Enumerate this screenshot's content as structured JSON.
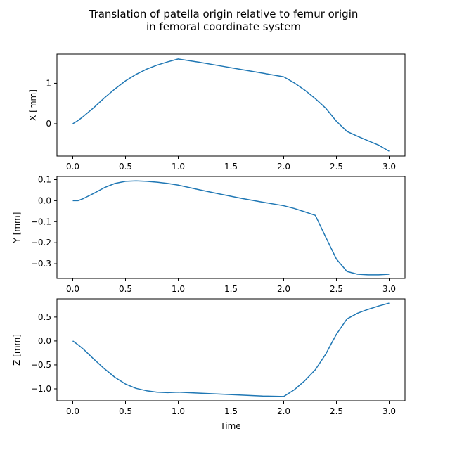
{
  "figure": {
    "title_line1": "Translation of patella origin relative to femur origin",
    "title_line2": "in femoral coordinate system",
    "xlabel": "Time"
  },
  "colors": {
    "line": "#1f77b4",
    "axes": "#000000",
    "background": "#ffffff"
  },
  "chart_data": [
    {
      "type": "line",
      "ylabel": "X [mm]",
      "xlim": [
        -0.15,
        3.15
      ],
      "ylim": [
        -0.8,
        1.72
      ],
      "xticks": [
        0.0,
        0.5,
        1.0,
        1.5,
        2.0,
        2.5,
        3.0
      ],
      "xtick_labels": [
        "0.0",
        "0.5",
        "1.0",
        "1.5",
        "2.0",
        "2.5",
        "3.0"
      ],
      "yticks": [
        0,
        1
      ],
      "ytick_labels": [
        "0",
        "1"
      ],
      "grid": false,
      "series": [
        {
          "x": [
            0.0,
            0.05,
            0.1,
            0.2,
            0.3,
            0.4,
            0.5,
            0.6,
            0.7,
            0.8,
            0.9,
            1.0,
            1.2,
            1.4,
            1.6,
            1.8,
            2.0,
            2.1,
            2.2,
            2.3,
            2.4,
            2.5,
            2.6,
            2.7,
            2.8,
            2.9,
            3.0
          ],
          "y": [
            0.0,
            0.08,
            0.18,
            0.4,
            0.64,
            0.86,
            1.06,
            1.22,
            1.35,
            1.45,
            1.53,
            1.6,
            1.52,
            1.43,
            1.34,
            1.25,
            1.16,
            1.01,
            0.83,
            0.62,
            0.38,
            0.06,
            -0.19,
            -0.31,
            -0.42,
            -0.53,
            -0.68
          ]
        }
      ]
    },
    {
      "type": "line",
      "ylabel": "Y [mm]",
      "xlim": [
        -0.15,
        3.15
      ],
      "ylim": [
        -0.37,
        0.115
      ],
      "xticks": [
        0.0,
        0.5,
        1.0,
        1.5,
        2.0,
        2.5,
        3.0
      ],
      "xtick_labels": [
        "0.0",
        "0.5",
        "1.0",
        "1.5",
        "2.0",
        "2.5",
        "3.0"
      ],
      "yticks": [
        0.1,
        0.0,
        -0.1,
        -0.2,
        -0.3
      ],
      "ytick_labels": [
        "0.1",
        "0.0",
        "−0.1",
        "−0.2",
        "−0.3"
      ],
      "grid": false,
      "series": [
        {
          "x": [
            0.0,
            0.05,
            0.1,
            0.2,
            0.3,
            0.4,
            0.5,
            0.6,
            0.7,
            0.8,
            0.9,
            1.0,
            1.2,
            1.4,
            1.6,
            1.8,
            2.0,
            2.1,
            2.2,
            2.3,
            2.4,
            2.5,
            2.6,
            2.7,
            2.8,
            2.9,
            3.0
          ],
          "y": [
            0.0,
            0.0,
            0.01,
            0.035,
            0.062,
            0.082,
            0.092,
            0.094,
            0.092,
            0.088,
            0.082,
            0.074,
            0.052,
            0.031,
            0.011,
            -0.007,
            -0.024,
            -0.037,
            -0.053,
            -0.07,
            -0.175,
            -0.278,
            -0.337,
            -0.35,
            -0.353,
            -0.353,
            -0.35
          ]
        }
      ]
    },
    {
      "type": "line",
      "ylabel": "Z [mm]",
      "xlim": [
        -0.15,
        3.15
      ],
      "ylim": [
        -1.25,
        0.88
      ],
      "xticks": [
        0.0,
        0.5,
        1.0,
        1.5,
        2.0,
        2.5,
        3.0
      ],
      "xtick_labels": [
        "0.0",
        "0.5",
        "1.0",
        "1.5",
        "2.0",
        "2.5",
        "3.0"
      ],
      "yticks": [
        0.5,
        0.0,
        -0.5,
        -1.0
      ],
      "ytick_labels": [
        "0.5",
        "0.0",
        "−0.5",
        "−1.0"
      ],
      "grid": false,
      "series": [
        {
          "x": [
            0.0,
            0.05,
            0.1,
            0.2,
            0.3,
            0.4,
            0.5,
            0.6,
            0.7,
            0.8,
            0.9,
            1.0,
            1.2,
            1.4,
            1.6,
            1.8,
            2.0,
            2.1,
            2.2,
            2.3,
            2.4,
            2.45,
            2.5,
            2.6,
            2.7,
            2.8,
            2.9,
            3.0
          ],
          "y": [
            0.0,
            -0.08,
            -0.17,
            -0.38,
            -0.58,
            -0.76,
            -0.9,
            -0.99,
            -1.04,
            -1.07,
            -1.08,
            -1.07,
            -1.09,
            -1.11,
            -1.13,
            -1.15,
            -1.16,
            -1.02,
            -0.83,
            -0.6,
            -0.27,
            -0.06,
            0.14,
            0.46,
            0.58,
            0.66,
            0.73,
            0.79
          ]
        }
      ]
    }
  ]
}
